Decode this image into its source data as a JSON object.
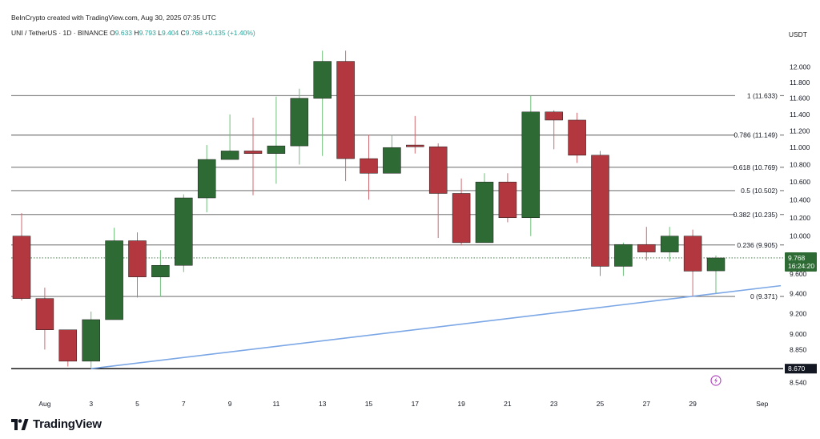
{
  "header": {
    "credit": "BeInCrypto created with TradingView.com, Aug 30, 2025 07:35 UTC",
    "symbol": "UNI / TetherUS · 1D · BINANCE",
    "o_label": "O",
    "o_value": "9.633",
    "h_label": "H",
    "h_value": "9.793",
    "l_label": "L",
    "l_value": "9.404",
    "c_label": "C",
    "c_value": "9.768",
    "change": "+0.135 (+1.40%)",
    "currency": "USDT"
  },
  "branding": {
    "name": "TradingView"
  },
  "colors": {
    "up": "#2e6b34",
    "down": "#b2373e",
    "trendline": "#7ba7e6",
    "fib": "#555555",
    "text": "#131722",
    "grid": "#e5e5e5"
  },
  "chart_data": {
    "type": "candlestick",
    "y_axis": {
      "side": "right",
      "scale": "log",
      "range": [
        8.45,
        12.35
      ],
      "ticks": [
        "12.000",
        "11.800",
        "11.600",
        "11.400",
        "11.200",
        "11.000",
        "10.800",
        "10.600",
        "10.400",
        "10.200",
        "10.000",
        "9.600",
        "9.400",
        "9.200",
        "9.000",
        "8.850",
        "8.540"
      ]
    },
    "x_axis": {
      "ticks": [
        {
          "day": 1,
          "label": "Aug"
        },
        {
          "day": 3,
          "label": "3"
        },
        {
          "day": 5,
          "label": "5"
        },
        {
          "day": 7,
          "label": "7"
        },
        {
          "day": 9,
          "label": "9"
        },
        {
          "day": 11,
          "label": "11"
        },
        {
          "day": 13,
          "label": "13"
        },
        {
          "day": 15,
          "label": "15"
        },
        {
          "day": 17,
          "label": "17"
        },
        {
          "day": 19,
          "label": "19"
        },
        {
          "day": 21,
          "label": "21"
        },
        {
          "day": 23,
          "label": "23"
        },
        {
          "day": 25,
          "label": "25"
        },
        {
          "day": 27,
          "label": "27"
        },
        {
          "day": 29,
          "label": "29"
        },
        {
          "day": 32,
          "label": "Sep"
        }
      ]
    },
    "candles": [
      {
        "day": 0,
        "o": 10.0,
        "h": 10.25,
        "l": 9.33,
        "c": 9.35
      },
      {
        "day": 1,
        "o": 9.35,
        "h": 9.46,
        "l": 8.85,
        "c": 9.04
      },
      {
        "day": 2,
        "o": 9.04,
        "h": 9.04,
        "l": 8.69,
        "c": 8.74
      },
      {
        "day": 3,
        "o": 8.74,
        "h": 9.22,
        "l": 8.68,
        "c": 9.14
      },
      {
        "day": 4,
        "o": 9.14,
        "h": 10.09,
        "l": 9.14,
        "c": 9.95
      },
      {
        "day": 5,
        "o": 9.95,
        "h": 10.04,
        "l": 9.36,
        "c": 9.57
      },
      {
        "day": 6,
        "o": 9.57,
        "h": 9.85,
        "l": 9.37,
        "c": 9.69
      },
      {
        "day": 7,
        "o": 9.69,
        "h": 10.46,
        "l": 9.62,
        "c": 10.42
      },
      {
        "day": 8,
        "o": 10.42,
        "h": 11.03,
        "l": 10.26,
        "c": 10.86
      },
      {
        "day": 9,
        "o": 10.86,
        "h": 11.4,
        "l": 10.86,
        "c": 10.96
      },
      {
        "day": 10,
        "o": 10.96,
        "h": 11.36,
        "l": 10.45,
        "c": 10.93
      },
      {
        "day": 11,
        "o": 10.93,
        "h": 11.62,
        "l": 10.58,
        "c": 11.02
      },
      {
        "day": 12,
        "o": 11.02,
        "h": 11.72,
        "l": 10.8,
        "c": 11.6
      },
      {
        "day": 13,
        "o": 11.6,
        "h": 12.21,
        "l": 10.9,
        "c": 12.07
      },
      {
        "day": 14,
        "o": 12.07,
        "h": 12.21,
        "l": 10.61,
        "c": 10.87
      },
      {
        "day": 15,
        "o": 10.87,
        "h": 11.15,
        "l": 10.4,
        "c": 10.7
      },
      {
        "day": 16,
        "o": 10.7,
        "h": 11.15,
        "l": 10.7,
        "c": 11.0
      },
      {
        "day": 17,
        "o": 11.03,
        "h": 11.38,
        "l": 10.93,
        "c": 11.01
      },
      {
        "day": 18,
        "o": 11.01,
        "h": 11.05,
        "l": 9.98,
        "c": 10.47
      },
      {
        "day": 19,
        "o": 10.47,
        "h": 10.64,
        "l": 9.9,
        "c": 9.93
      },
      {
        "day": 20,
        "o": 9.93,
        "h": 10.7,
        "l": 9.93,
        "c": 10.6
      },
      {
        "day": 21,
        "o": 10.6,
        "h": 10.7,
        "l": 10.15,
        "c": 10.2
      },
      {
        "day": 22,
        "o": 10.2,
        "h": 11.63,
        "l": 10.0,
        "c": 11.43
      },
      {
        "day": 23,
        "o": 11.43,
        "h": 11.45,
        "l": 10.98,
        "c": 11.33
      },
      {
        "day": 24,
        "o": 11.33,
        "h": 11.42,
        "l": 10.82,
        "c": 10.91
      },
      {
        "day": 25,
        "o": 10.91,
        "h": 10.96,
        "l": 9.58,
        "c": 9.68
      },
      {
        "day": 26,
        "o": 9.68,
        "h": 9.93,
        "l": 9.58,
        "c": 9.91
      },
      {
        "day": 27,
        "o": 9.91,
        "h": 10.1,
        "l": 9.74,
        "c": 9.83
      },
      {
        "day": 28,
        "o": 9.83,
        "h": 10.1,
        "l": 9.73,
        "c": 10.0
      },
      {
        "day": 29,
        "o": 10.0,
        "h": 10.07,
        "l": 9.37,
        "c": 9.63
      },
      {
        "day": 30,
        "o": 9.633,
        "h": 9.793,
        "l": 9.404,
        "c": 9.768
      }
    ],
    "fib_levels": [
      {
        "value": 11.633,
        "label": "1 (11.633)"
      },
      {
        "value": 11.149,
        "label": "0.786 (11.149)"
      },
      {
        "value": 10.769,
        "label": "0.618 (10.769)"
      },
      {
        "value": 10.502,
        "label": "0.5 (10.502)"
      },
      {
        "value": 10.235,
        "label": "0.382 (10.235)"
      },
      {
        "value": 9.905,
        "label": "0.236 (9.905)"
      },
      {
        "value": 9.371,
        "label": "0 (9.371)"
      }
    ],
    "support_line": {
      "value": 8.67,
      "label": "8.670"
    },
    "trendline": {
      "start": {
        "day": 3,
        "value": 8.67
      },
      "end": {
        "day": 33.5,
        "value": 9.48
      }
    },
    "current_price": {
      "value": 9.768,
      "label": "9.768",
      "countdown": "16:24:20"
    },
    "marker": {
      "day": 30,
      "value": 8.56,
      "icon": "lightning-icon"
    }
  }
}
